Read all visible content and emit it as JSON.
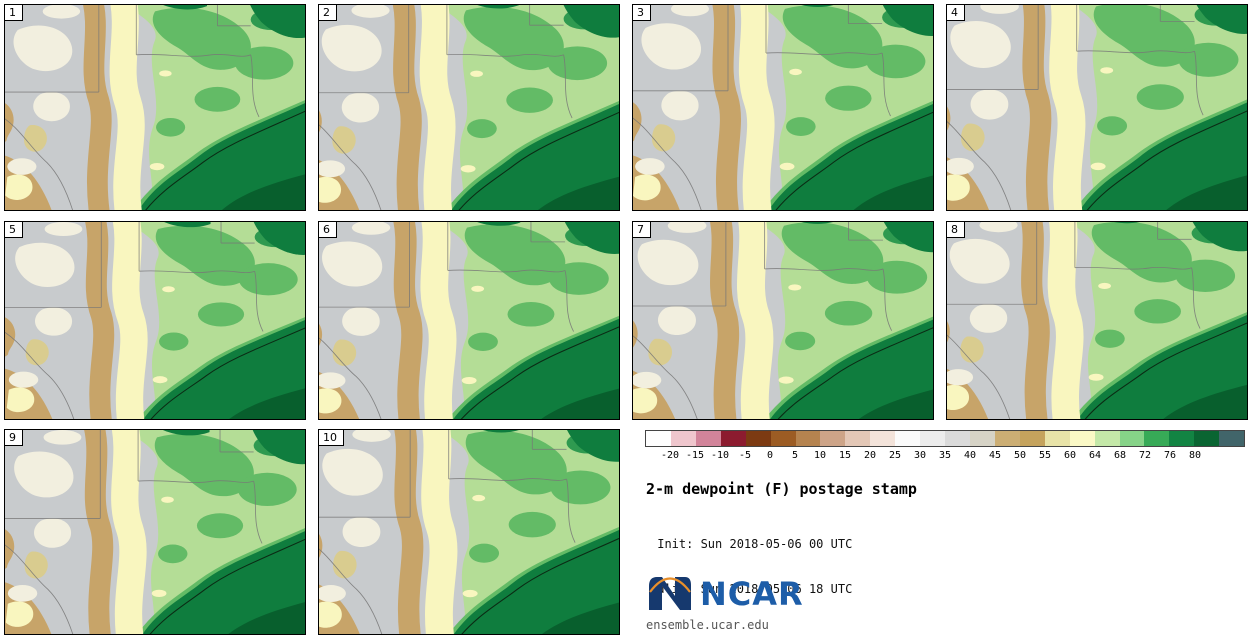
{
  "panels": [
    {
      "label": "1"
    },
    {
      "label": "2"
    },
    {
      "label": "3"
    },
    {
      "label": "4"
    },
    {
      "label": "5"
    },
    {
      "label": "6"
    },
    {
      "label": "7"
    },
    {
      "label": "8"
    },
    {
      "label": "9"
    },
    {
      "label": "10"
    }
  ],
  "legend": {
    "ticks": [
      "-20",
      "-15",
      "-10",
      "-5",
      "0",
      "5",
      "10",
      "15",
      "20",
      "25",
      "30",
      "35",
      "40",
      "45",
      "50",
      "55",
      "60",
      "64",
      "68",
      "72",
      "76",
      "80"
    ],
    "colors": [
      "#fefefe",
      "#efc6cd",
      "#d2849a",
      "#8c1b2f",
      "#7c3a12",
      "#9c5c24",
      "#b5834f",
      "#cda488",
      "#e3c7b6",
      "#f3e3da",
      "#fbfbfb",
      "#ececec",
      "#dadada",
      "#d6d3c6",
      "#ccae74",
      "#c5a35d",
      "#e8e3a8",
      "#fbf9c6",
      "#c4e8a8",
      "#86d388",
      "#37aa57",
      "#128443",
      "#0a6532"
    ],
    "overflow_color": "#41656a",
    "title": "2-m dewpoint (F) postage stamp",
    "init_line": " Init: Sun 2018-05-06 00 UTC",
    "valid_line": "Valid: Sun 2018-05-06 18 UTC",
    "logo_text": "NCAR",
    "site": "ensemble.ucar.edu"
  },
  "map_palette": {
    "gray": "#c8cbcd",
    "cream": "#f2efdf",
    "tan": "#c7a469",
    "pale_yellow": "#f9f6bf",
    "light_green": "#b4dd96",
    "medium_green": "#63bb66",
    "dark_green": "#0f7d3e",
    "deep_green": "#085f2d"
  }
}
